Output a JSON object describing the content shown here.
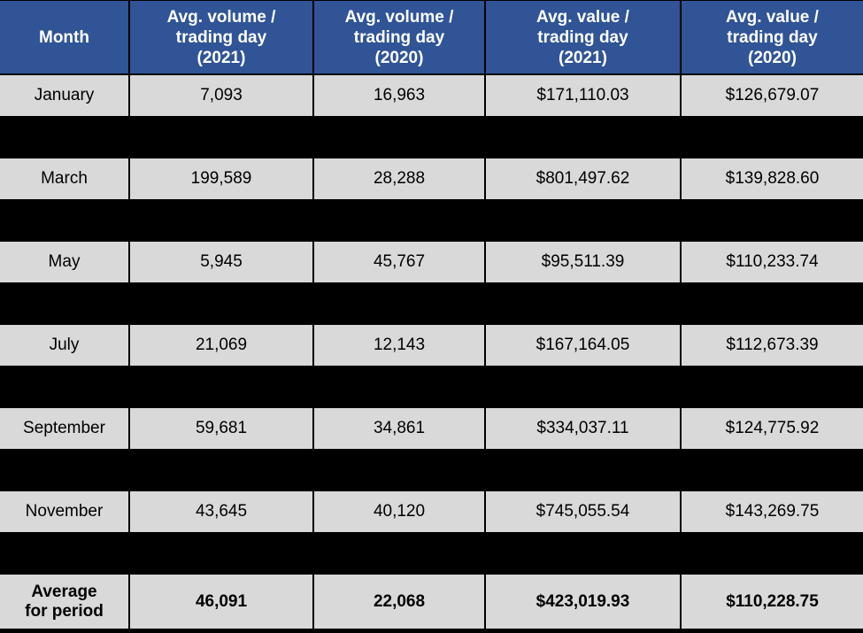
{
  "table": {
    "headers": [
      "Month",
      "Avg. volume /\ntrading day\n(2021)",
      "Avg. volume /\ntrading day\n(2020)",
      "Avg. value /\ntrading day\n(2021)",
      "Avg. value /\ntrading day\n(2020)"
    ],
    "rows": [
      {
        "month": "January",
        "cells": [
          "7,093",
          "16,963",
          "$171,110.03",
          "$126,679.07"
        ]
      },
      {
        "month": "March",
        "cells": [
          "199,589",
          "28,288",
          "$801,497.62",
          "$139,828.60"
        ]
      },
      {
        "month": "May",
        "cells": [
          "5,945",
          "45,767",
          "$95,511.39",
          "$110,233.74"
        ]
      },
      {
        "month": "July",
        "cells": [
          "21,069",
          "12,143",
          "$167,164.05",
          "$112,673.39"
        ]
      },
      {
        "month": "September",
        "cells": [
          "59,681",
          "34,861",
          "$334,037.11",
          "$124,775.92"
        ]
      },
      {
        "month": "November",
        "cells": [
          "43,645",
          "40,120",
          "$745,055.54",
          "$143,269.75"
        ]
      }
    ],
    "summary": {
      "label": "Average\nfor period",
      "cells": [
        "46,091",
        "22,068",
        "$423,019.93",
        "$110,228.75"
      ]
    }
  },
  "colors": {
    "header_bg": "#305496",
    "header_text": "#FFFFFF",
    "cell_bg": "#D9D9D9",
    "separator": "#000000"
  },
  "chart_data": {
    "type": "table",
    "columns": [
      "Month",
      "Avg. volume / trading day (2021)",
      "Avg. volume / trading day (2020)",
      "Avg. value / trading day (2021)",
      "Avg. value / trading day (2020)"
    ],
    "rows": [
      [
        "January",
        7093,
        16963,
        171110.03,
        126679.07
      ],
      [
        "March",
        199589,
        28288,
        801497.62,
        139828.6
      ],
      [
        "May",
        5945,
        45767,
        95511.39,
        110233.74
      ],
      [
        "July",
        21069,
        12143,
        167164.05,
        112673.39
      ],
      [
        "September",
        59681,
        34861,
        334037.11,
        124775.92
      ],
      [
        "November",
        43645,
        40120,
        745055.54,
        143269.75
      ],
      [
        "Average for period",
        46091,
        22068,
        423019.93,
        110228.75
      ]
    ]
  }
}
